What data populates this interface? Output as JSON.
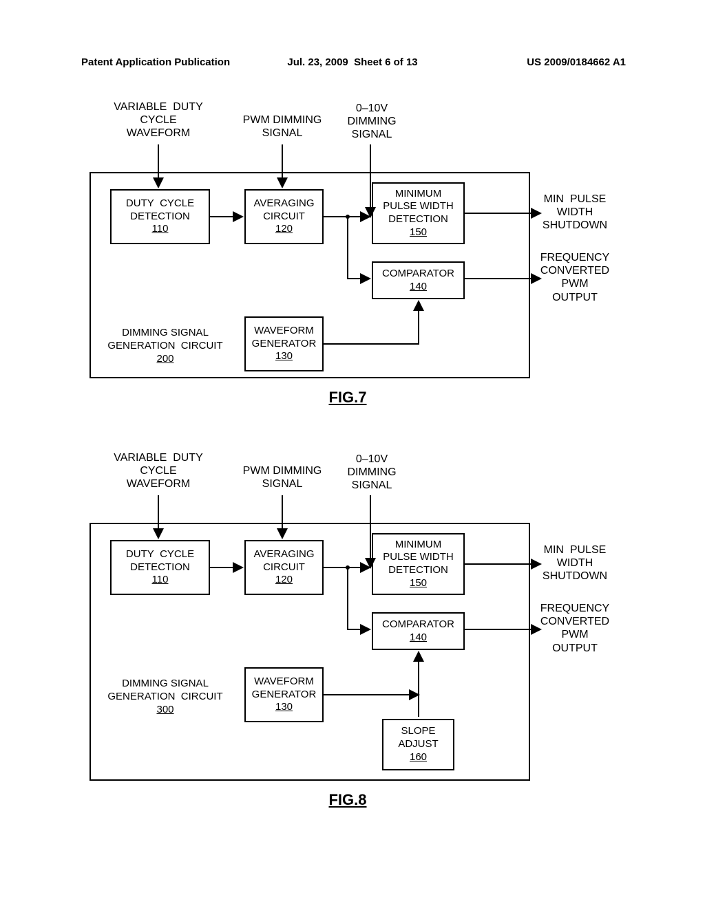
{
  "header": {
    "left": "Patent Application Publication",
    "center": "Jul. 23, 2009  Sheet 6 of 13",
    "right": "US 2009/0184662 A1"
  },
  "inputs": {
    "var_duty": "VARIABLE  DUTY\nCYCLE\nWAVEFORM",
    "pwm_dim": "PWM DIMMING\nSIGNAL",
    "v010": "0–10V\nDIMMING\nSIGNAL"
  },
  "outputs": {
    "min_pulse": "MIN  PULSE\nWIDTH\nSHUTDOWN",
    "freq_conv": "FREQUENCY\nCONVERTED\nPWM\nOUTPUT"
  },
  "blocks": {
    "duty_cycle": {
      "label": "DUTY  CYCLE\nDETECTION",
      "ref": "110"
    },
    "averaging": {
      "label": "AVERAGING\nCIRCUIT",
      "ref": "120"
    },
    "min_pw": {
      "label": "MINIMUM\nPULSE WIDTH\nDETECTION",
      "ref": "150"
    },
    "comparator": {
      "label": "COMPARATOR",
      "ref": "140"
    },
    "wavegen": {
      "label": "WAVEFORM\nGENERATOR",
      "ref": "130"
    },
    "slope": {
      "label": "SLOPE\nADJUST",
      "ref": "160"
    }
  },
  "circuits": {
    "fig7": {
      "label": "DIMMING SIGNAL\nGENERATION  CIRCUIT",
      "ref": "200"
    },
    "fig8": {
      "label": "DIMMING SIGNAL\nGENERATION  CIRCUIT",
      "ref": "300"
    }
  },
  "fig_labels": {
    "fig7": "FIG.7",
    "fig8": "FIG.8"
  },
  "style": {
    "stroke": "#000000",
    "stroke_width": 2,
    "arrow_size": 8,
    "font_size_block": 15,
    "font_size_label": 16,
    "font_size_fig": 22,
    "bg": "#ffffff"
  }
}
